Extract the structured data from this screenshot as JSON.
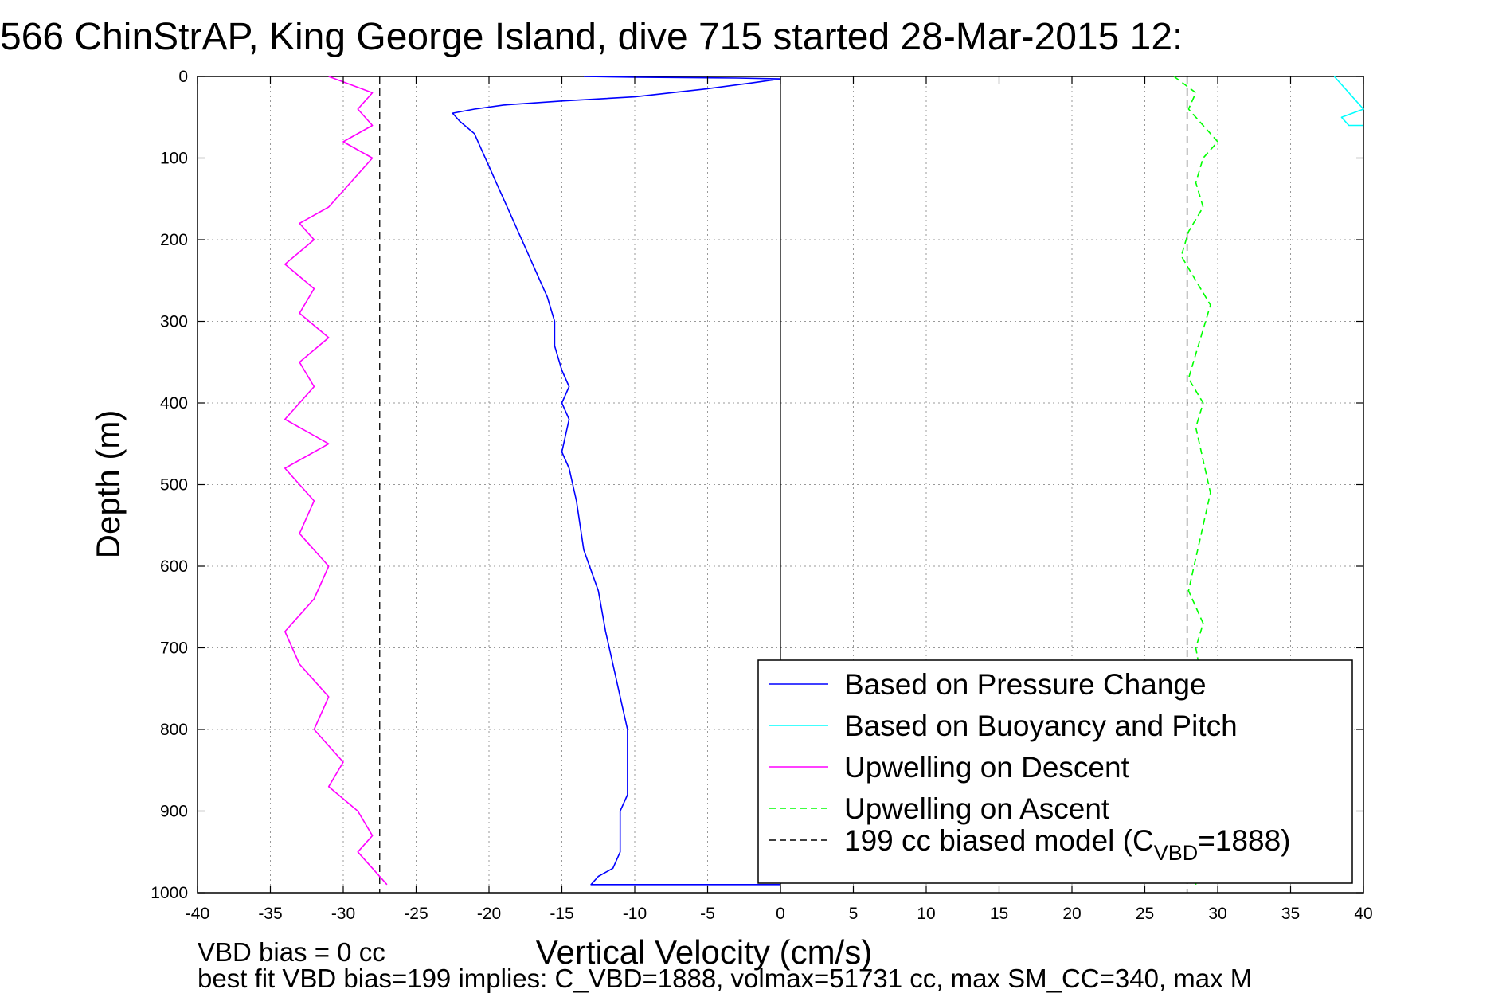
{
  "chart_data": {
    "type": "line",
    "title": "566 ChinStrAP, King George Island, dive 715 started 28-Mar-2015 12:",
    "xlabel": "Vertical Velocity (cm/s)",
    "ylabel": "Depth (m)",
    "xlim": [
      -40,
      40
    ],
    "ylim": [
      1000,
      0
    ],
    "y_reversed": true,
    "grid": true,
    "xticks": [
      -40,
      -35,
      -30,
      -25,
      -20,
      -15,
      -10,
      -5,
      0,
      5,
      10,
      15,
      20,
      25,
      30,
      35,
      40
    ],
    "yticks": [
      0,
      100,
      200,
      300,
      400,
      500,
      600,
      700,
      800,
      900,
      1000
    ],
    "reference_lines": [
      {
        "x": -27.5,
        "color": "#000000",
        "style": "dashed"
      },
      {
        "x": 27.9,
        "color": "#000000",
        "style": "dashed"
      },
      {
        "x": 0,
        "color": "#000000",
        "style": "solid"
      }
    ],
    "legend_position": "bottom-right",
    "legend": [
      {
        "label": "Based on Pressure Change",
        "color": "#0000ff",
        "style": "solid"
      },
      {
        "label": "Based on Buoyancy and Pitch",
        "color": "#00ffff",
        "style": "solid"
      },
      {
        "label": "Upwelling on Descent",
        "color": "#ff00ff",
        "style": "solid"
      },
      {
        "label": "Upwelling on Ascent",
        "color": "#00ff00",
        "style": "dashed"
      },
      {
        "label_main": "199 cc biased model (C",
        "label_sub": "VBD",
        "label_tail": "=1888)",
        "color": "#000000",
        "style": "dashed"
      }
    ],
    "series": [
      {
        "color": "#0000ff",
        "style": "solid",
        "x": [
          -13.5,
          -10,
          -3,
          0,
          -2,
          -5,
          -10,
          -15,
          -19,
          -21,
          -22.5,
          -22,
          -21,
          -20.5,
          -20,
          -19.5,
          -19,
          -18.5,
          -18,
          -17.5,
          -17,
          -16.5,
          -16,
          -15.5,
          -15.5,
          -15,
          -14.5,
          -15,
          -14.5,
          -15,
          -14.5,
          -14,
          -13.5,
          -12.5,
          -12,
          -11.5,
          -11,
          -10.5,
          -10.5,
          -10.5,
          -11,
          -11,
          -11,
          -11.5,
          -12.5,
          -13,
          0
        ],
        "y": [
          0,
          1,
          2,
          3,
          8,
          15,
          25,
          30,
          35,
          40,
          45,
          55,
          70,
          90,
          110,
          130,
          150,
          170,
          190,
          210,
          230,
          250,
          270,
          300,
          330,
          360,
          380,
          400,
          420,
          460,
          480,
          520,
          580,
          630,
          680,
          720,
          760,
          800,
          840,
          880,
          900,
          920,
          950,
          970,
          980,
          990,
          990
        ]
      },
      {
        "color": "#00ffff",
        "style": "solid",
        "x": [
          38,
          39,
          40,
          38.5,
          39,
          40
        ],
        "y": [
          0,
          20,
          40,
          50,
          60,
          60
        ]
      },
      {
        "color": "#ff00ff",
        "style": "solid",
        "x": [
          -31,
          -28,
          -29,
          -28,
          -30,
          -28,
          -29,
          -30,
          -31,
          -33,
          -32,
          -34,
          -32,
          -33,
          -31,
          -33,
          -32,
          -34,
          -31,
          -34,
          -32,
          -33,
          -31,
          -32,
          -34,
          -33,
          -31,
          -32,
          -30,
          -31,
          -29,
          -28,
          -29,
          -28,
          -27
        ],
        "y": [
          0,
          20,
          40,
          60,
          80,
          100,
          120,
          140,
          160,
          180,
          200,
          230,
          260,
          290,
          320,
          350,
          380,
          420,
          450,
          480,
          520,
          560,
          600,
          640,
          680,
          720,
          760,
          800,
          840,
          870,
          900,
          930,
          950,
          970,
          990
        ]
      },
      {
        "color": "#00ff00",
        "style": "dashed",
        "x": [
          27,
          28.5,
          28,
          29,
          30,
          29,
          28.5,
          29,
          28,
          27.5,
          28.5,
          29.5,
          29,
          28.5,
          28,
          29,
          28.5,
          29,
          29.5,
          29,
          28.5,
          28,
          29,
          28.5,
          29,
          28.5,
          29,
          28.5
        ],
        "y": [
          0,
          20,
          40,
          60,
          80,
          100,
          130,
          160,
          190,
          220,
          250,
          280,
          310,
          340,
          370,
          400,
          430,
          470,
          510,
          550,
          590,
          630,
          670,
          700,
          750,
          800,
          900,
          990
        ]
      }
    ],
    "annotations": [
      "VBD bias = 0 cc",
      "best fit VBD bias=199 implies: C_VBD=1888, volmax=51731 cc, max SM_CC=340, max M"
    ]
  }
}
